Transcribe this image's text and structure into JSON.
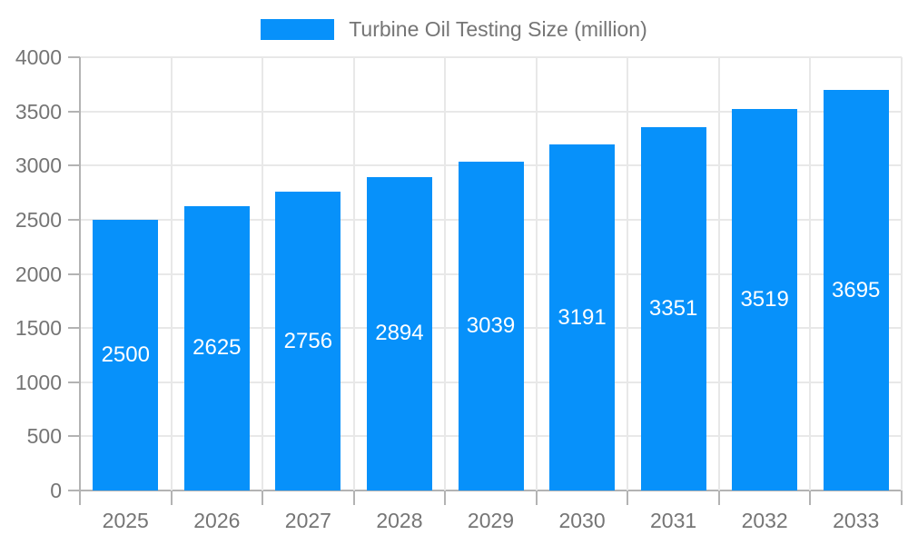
{
  "legend": {
    "label": "Turbine Oil Testing Size (million)"
  },
  "chart_data": {
    "type": "bar",
    "title": "Turbine Oil Testing Size (million)",
    "categories": [
      "2025",
      "2026",
      "2027",
      "2028",
      "2029",
      "2030",
      "2031",
      "2032",
      "2033"
    ],
    "values": [
      2500,
      2625,
      2756,
      2894,
      3039,
      3191,
      3351,
      3519,
      3695
    ],
    "series": [
      {
        "name": "Turbine Oil Testing Size (million)",
        "values": [
          2500,
          2625,
          2756,
          2894,
          3039,
          3191,
          3351,
          3519,
          3695
        ]
      }
    ],
    "bar_labels": [
      "2500",
      "2625",
      "2756",
      "2894",
      "3039",
      "3191",
      "3351",
      "3519",
      "3695"
    ],
    "xlabel": "",
    "ylabel": "",
    "ylim": [
      0,
      4000
    ],
    "yticks": [
      0,
      500,
      1000,
      1500,
      2000,
      2500,
      3000,
      3500,
      4000
    ],
    "grid": true,
    "legend_position": "top",
    "colors": {
      "bar": "#0791fa",
      "grid": "#e8e8e8",
      "axis": "#b3b3b3",
      "text": "#757575",
      "bar_label": "#ffffff",
      "background": "#ffffff"
    }
  }
}
